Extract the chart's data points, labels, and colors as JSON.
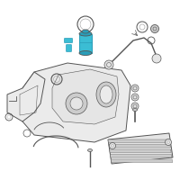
{
  "background_color": "#ffffff",
  "figure_size": [
    2.0,
    2.0
  ],
  "dpi": 100,
  "highlight_color": "#3bbdd4",
  "highlight_color2": "#2a9db8",
  "line_color": "#999999",
  "dark_line": "#555555",
  "light_fill": "#e5e5e5",
  "mid_fill": "#cccccc",
  "tank_fill": "#ebebeb",
  "small_blue": "#3bbdd4"
}
